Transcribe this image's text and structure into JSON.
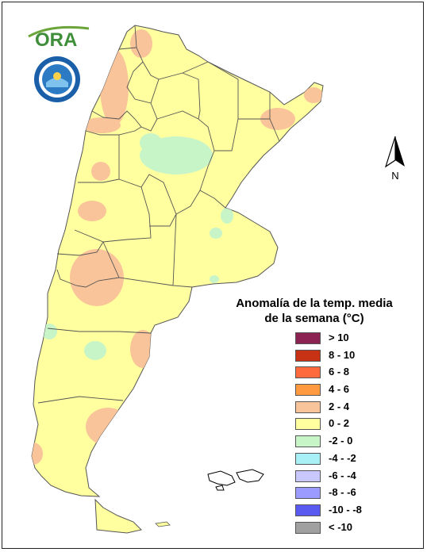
{
  "legend": {
    "title_line1": "Anomalía de la temp. media",
    "title_line2": "de la semana (°C)",
    "items": [
      {
        "label": "> 10",
        "color": "#8B2252"
      },
      {
        "label": "8 - 10",
        "color": "#C83214"
      },
      {
        "label": "6 - 8",
        "color": "#FF6A3C"
      },
      {
        "label": "4 - 6",
        "color": "#FF9A40"
      },
      {
        "label": "2 - 4",
        "color": "#F9C49A"
      },
      {
        "label": "0 - 2",
        "color": "#FFFF9F"
      },
      {
        "label": "-2 - 0",
        "color": "#C8F5C8"
      },
      {
        "label": "-4 - -2",
        "color": "#A8F0F5"
      },
      {
        "label": "-6 - -4",
        "color": "#C8C8FF"
      },
      {
        "label": "-8 - -6",
        "color": "#9B9BFF"
      },
      {
        "label": "-10 - -8",
        "color": "#5A5AF0"
      },
      {
        "label": "< -10",
        "color": "#A0A0A0"
      }
    ]
  },
  "north_arrow": {
    "label": "N"
  },
  "logos": {
    "ora": "ORA"
  },
  "colors": {
    "base": "#FFFF9F",
    "warm": "#F9C49A",
    "cool": "#C8F5C8",
    "cyan": "#A8F0F5",
    "border": "#555555"
  }
}
